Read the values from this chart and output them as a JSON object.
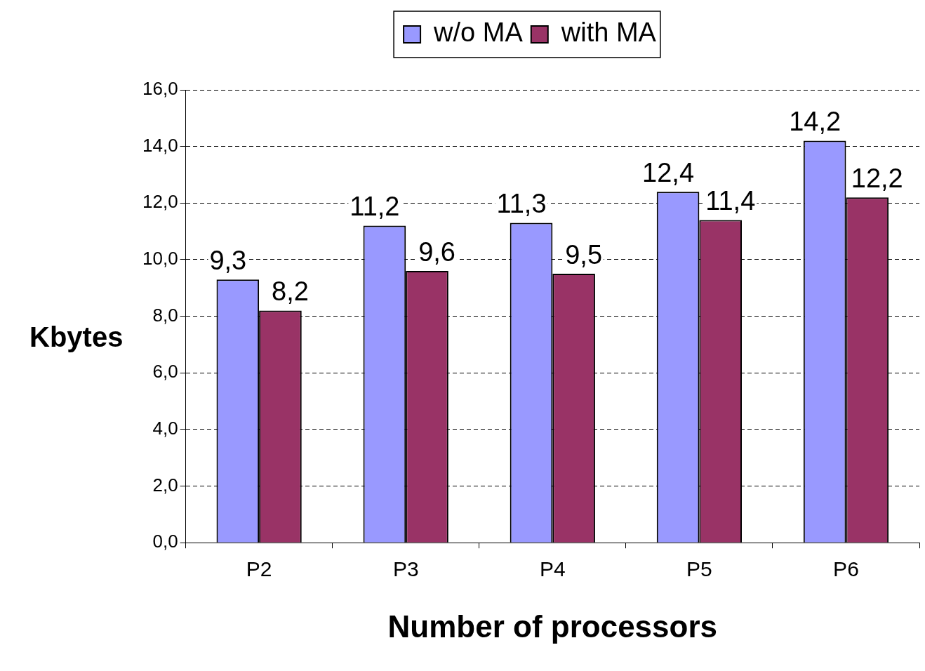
{
  "chart_data": {
    "type": "bar",
    "xlabel": "Number of processors",
    "ylabel": "Kbytes",
    "categories": [
      "P2",
      "P3",
      "P4",
      "P5",
      "P6"
    ],
    "series": [
      {
        "name": "w/o MA",
        "color": "#9999ff",
        "values": [
          9.3,
          11.2,
          11.3,
          12.4,
          14.2
        ],
        "value_labels": [
          "9,3",
          "11,2",
          "11,3",
          "12,4",
          "14,2"
        ]
      },
      {
        "name": "with MA",
        "color": "#993366",
        "values": [
          8.2,
          9.6,
          9.5,
          11.4,
          12.2
        ],
        "value_labels": [
          "8,2",
          "9,6",
          "9,5",
          "11,4",
          "12,2"
        ]
      }
    ],
    "ylim": [
      0,
      16
    ],
    "yticks": [
      {
        "value": 0,
        "label": "0,0"
      },
      {
        "value": 2,
        "label": "2,0"
      },
      {
        "value": 4,
        "label": "4,0"
      },
      {
        "value": 6,
        "label": "6,0"
      },
      {
        "value": 8,
        "label": "8,0"
      },
      {
        "value": 10,
        "label": "10,0"
      },
      {
        "value": 12,
        "label": "12,0"
      },
      {
        "value": 14,
        "label": "14,0"
      },
      {
        "value": 16,
        "label": "16,0"
      }
    ],
    "grid": "y",
    "legend": "top"
  }
}
